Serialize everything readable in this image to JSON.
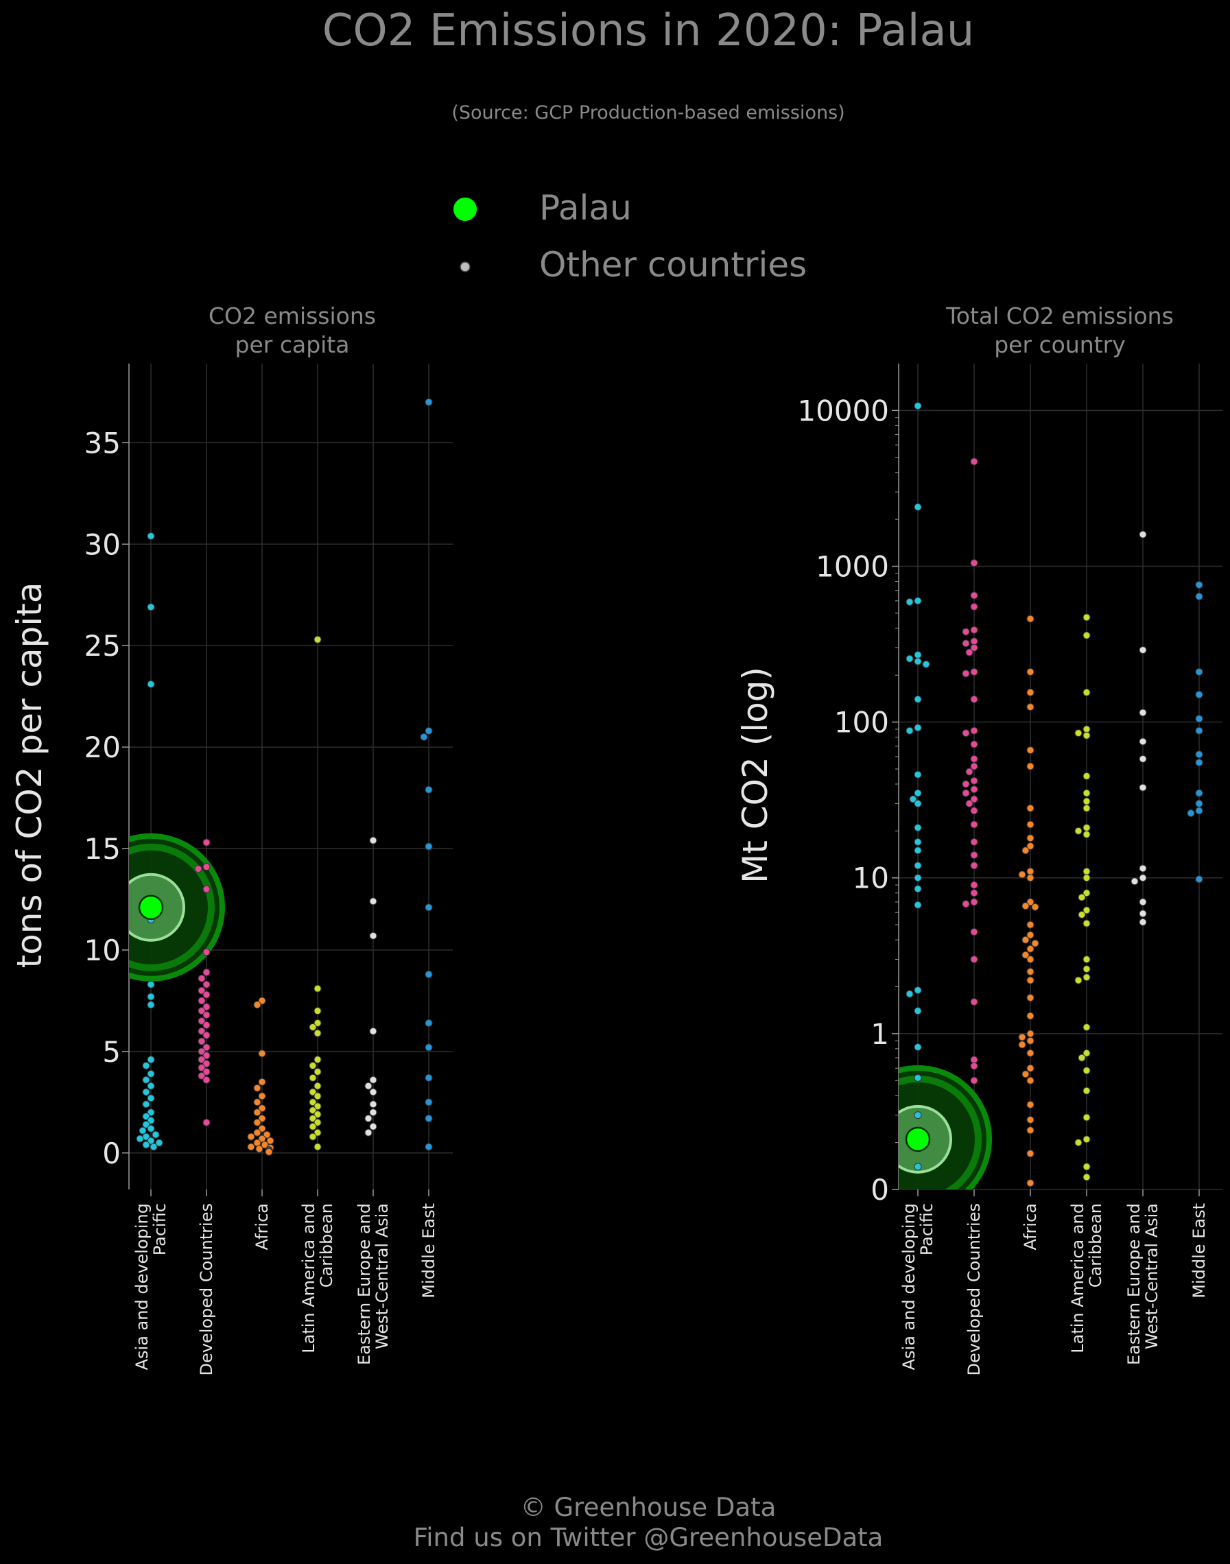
{
  "header": {
    "title": "CO2 Emissions in 2020: Palau",
    "subtitle": "(Source: GCP Production-based emissions)"
  },
  "legend": {
    "highlight_label": "Palau",
    "others_label": "Other countries",
    "placement": "top-center"
  },
  "footer": {
    "line1": "© Greenhouse Data",
    "line2": "Find us on Twitter @GreenhouseData"
  },
  "colors": {
    "background": "#000000",
    "title_text": "#8a8a8a",
    "tick_text": "#e6e6e6",
    "gridline": "#2e2e2e",
    "highlight": "#00ff00",
    "highlight_halo": "#0a6a0a"
  },
  "regions": [
    {
      "name": "Asia and developing Pacific",
      "label_lines": [
        "Asia and developing",
        "Pacific"
      ],
      "color": "#22c7dd"
    },
    {
      "name": "Developed Countries",
      "label_lines": [
        "Developed Countries"
      ],
      "color": "#e8489a"
    },
    {
      "name": "Africa",
      "label_lines": [
        "Africa"
      ],
      "color": "#f5872a"
    },
    {
      "name": "Latin America and Caribbean",
      "label_lines": [
        "Latin America and",
        "Caribbean"
      ],
      "color": "#c8e02a"
    },
    {
      "name": "Eastern Europe and West-Central Asia",
      "label_lines": [
        "Eastern Europe and",
        "West-Central Asia"
      ],
      "color": "#e0e0e0"
    },
    {
      "name": "Middle East",
      "label_lines": [
        "Middle East"
      ],
      "color": "#2596d8"
    }
  ],
  "chart_data": [
    {
      "type": "scatter",
      "title": "CO2 emissions\nper capita",
      "title_lines": [
        "CO2 emissions",
        "per capita"
      ],
      "ylabel": "tons of CO2 per capita",
      "xlabel": "",
      "y_scale": "linear",
      "ylim": [
        -1.8,
        38.9
      ],
      "yticks": [
        0,
        5,
        10,
        15,
        20,
        25,
        30,
        35
      ],
      "ytick_labels": [
        "0",
        "5",
        "10",
        "15",
        "20",
        "25",
        "30",
        "35"
      ],
      "grid": true,
      "categories": [
        "Asia and developing Pacific",
        "Developed Countries",
        "Africa",
        "Latin America and Caribbean",
        "Eastern Europe and West-Central Asia",
        "Middle East"
      ],
      "highlight": {
        "name": "Palau",
        "category": "Asia and developing Pacific",
        "value": 12.1
      },
      "series": [
        {
          "category": "Asia and developing Pacific",
          "values": [
            30.4,
            26.9,
            23.1,
            11.5,
            8.3,
            7.7,
            7.3,
            4.6,
            4.3,
            3.9,
            3.6,
            3.3,
            3.0,
            2.7,
            2.4,
            2.0,
            1.8,
            1.6,
            1.4,
            1.2,
            1.1,
            0.9,
            0.8,
            0.7,
            0.6,
            0.5,
            0.4,
            0.3
          ]
        },
        {
          "category": "Developed Countries",
          "values": [
            15.3,
            14.1,
            14.0,
            13.0,
            9.9,
            8.9,
            8.6,
            8.3,
            8.0,
            7.8,
            7.5,
            7.2,
            7.0,
            6.8,
            6.5,
            6.3,
            6.0,
            5.8,
            5.5,
            5.2,
            5.0,
            4.8,
            4.6,
            4.4,
            4.2,
            4.0,
            3.8,
            3.6,
            1.5
          ]
        },
        {
          "category": "Africa",
          "values": [
            7.5,
            7.3,
            4.9,
            3.5,
            3.2,
            2.8,
            2.5,
            2.2,
            2.0,
            1.7,
            1.5,
            1.2,
            1.0,
            0.9,
            0.8,
            0.7,
            0.6,
            0.5,
            0.4,
            0.3,
            0.25,
            0.2,
            0.15,
            0.1,
            0.08,
            0.05
          ]
        },
        {
          "category": "Latin America and Caribbean",
          "values": [
            25.3,
            8.1,
            7.0,
            6.4,
            6.2,
            5.9,
            4.6,
            4.3,
            4.0,
            3.7,
            3.3,
            3.0,
            2.8,
            2.5,
            2.3,
            2.1,
            1.9,
            1.7,
            1.5,
            1.3,
            1.0,
            0.8,
            0.3
          ]
        },
        {
          "category": "Eastern Europe and West-Central Asia",
          "values": [
            15.4,
            12.4,
            10.7,
            6.0,
            3.6,
            3.3,
            3.0,
            2.4,
            2.0,
            1.7,
            1.3,
            1.0
          ]
        },
        {
          "category": "Middle East",
          "values": [
            37.0,
            20.8,
            20.5,
            17.9,
            15.1,
            12.1,
            8.8,
            6.4,
            5.2,
            3.7,
            2.5,
            1.7,
            0.3
          ]
        }
      ]
    },
    {
      "type": "scatter",
      "title": "Total CO2 emissions\nper country",
      "title_lines": [
        "Total CO2 emissions",
        "per country"
      ],
      "ylabel": "Mt CO2 (log)",
      "xlabel": "",
      "y_scale": "log",
      "ylim": [
        0.1,
        20000
      ],
      "yticks": [
        0.1,
        1,
        10,
        100,
        1000,
        10000
      ],
      "ytick_labels": [
        "0",
        "1",
        "10",
        "100",
        "1000",
        "10000"
      ],
      "grid": true,
      "categories": [
        "Asia and developing Pacific",
        "Developed Countries",
        "Africa",
        "Latin America and Caribbean",
        "Eastern Europe and West-Central Asia",
        "Middle East"
      ],
      "highlight": {
        "name": "Palau",
        "category": "Asia and developing Pacific",
        "value": 0.21
      },
      "series": [
        {
          "category": "Asia and developing Pacific",
          "values": [
            10700,
            2400,
            600,
            590,
            270,
            255,
            245,
            235,
            140,
            92,
            88,
            46,
            35,
            32,
            30,
            21,
            17,
            15,
            12,
            10,
            8.5,
            6.7,
            1.9,
            1.8,
            1.4,
            0.82,
            0.52,
            0.3,
            0.14
          ]
        },
        {
          "category": "Developed Countries",
          "values": [
            4700,
            1050,
            650,
            550,
            390,
            380,
            330,
            320,
            300,
            280,
            210,
            205,
            140,
            88,
            85,
            72,
            58,
            52,
            48,
            42,
            40,
            37,
            35,
            32,
            30,
            27,
            22,
            17,
            14,
            12,
            9,
            8,
            7,
            6.8,
            4.5,
            3.0,
            1.6,
            0.68,
            0.62,
            0.5
          ]
        },
        {
          "category": "Africa",
          "values": [
            460,
            210,
            155,
            125,
            66,
            52,
            28,
            22,
            18,
            16,
            15,
            11,
            10.5,
            10,
            7,
            6.6,
            6.5,
            5,
            4.3,
            4,
            3.8,
            3.5,
            3.2,
            3,
            2.5,
            2.2,
            1.7,
            1.3,
            1.0,
            0.95,
            0.9,
            0.85,
            0.75,
            0.6,
            0.55,
            0.5,
            0.35,
            0.28,
            0.24,
            0.17,
            0.11
          ]
        },
        {
          "category": "Latin America and Caribbean",
          "values": [
            470,
            360,
            155,
            90,
            85,
            82,
            45,
            35,
            31,
            28,
            21,
            20,
            19,
            11,
            10,
            8,
            7.5,
            6.2,
            5.8,
            5.1,
            3.0,
            2.6,
            2.3,
            2.2,
            1.1,
            0.75,
            0.7,
            0.58,
            0.43,
            0.29,
            0.21,
            0.2,
            0.14,
            0.12
          ]
        },
        {
          "category": "Eastern Europe and West-Central Asia",
          "values": [
            1600,
            290,
            115,
            75,
            58,
            38,
            11.5,
            10,
            9.5,
            7,
            5.9,
            5.2
          ]
        },
        {
          "category": "Middle East",
          "values": [
            760,
            640,
            210,
            150,
            105,
            88,
            62,
            55,
            35,
            30,
            27,
            26,
            9.8
          ]
        }
      ]
    }
  ]
}
